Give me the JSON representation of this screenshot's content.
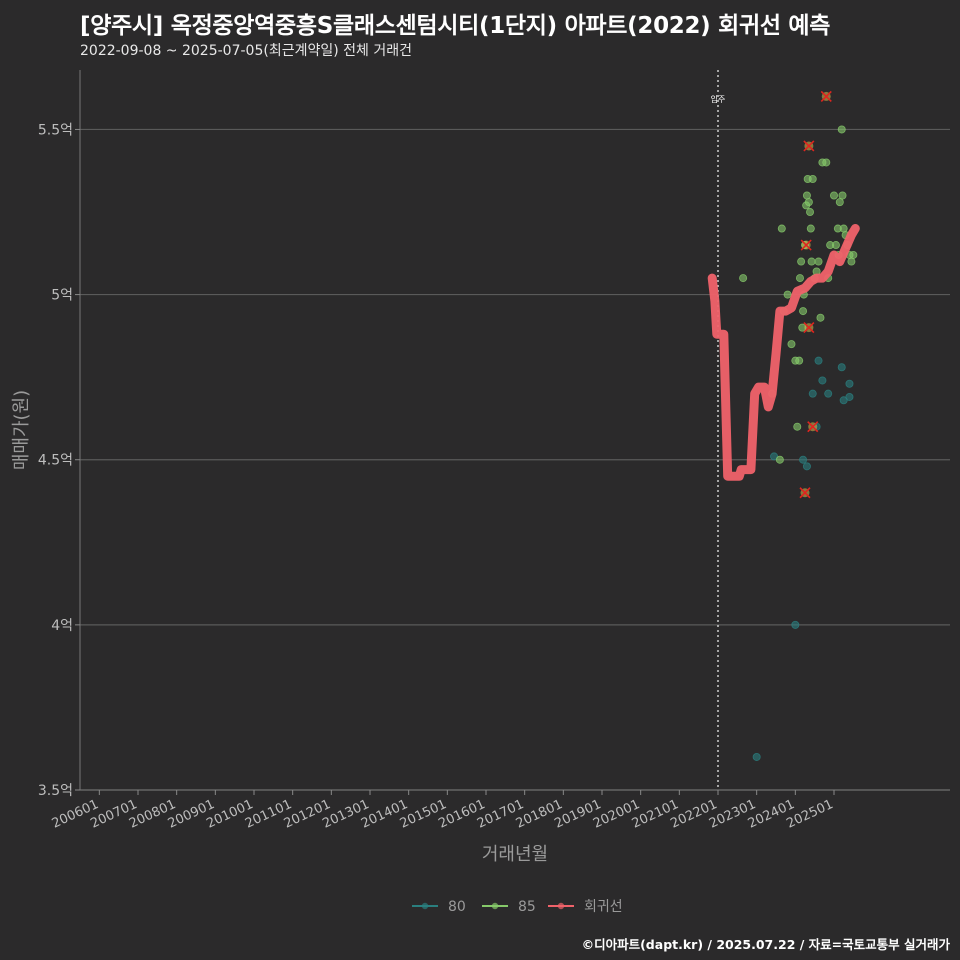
{
  "title": "[양주시] 옥정중앙역중흥S클래스센텀시티(1단지) 아파트(2022) 회귀선 예측",
  "subtitle": "2022-09-08 ~ 2025-07-05(최근계약일) 전체 거래건",
  "caption": "©디아파트(dapt.kr) / 2025.07.22 / 자료=국토교통부 실거래가",
  "colors": {
    "background": "#2b2a2b",
    "grid": "#5a5a5a",
    "s80": "#2a7f7f",
    "s85": "#86c96a",
    "regression": "#f0626a",
    "outlier": "#e0251f"
  },
  "chart_data": {
    "type": "scatter",
    "xlabel": "거래년월",
    "ylabel": "매매가(원)",
    "xlim": [
      2005.5,
      2028.0
    ],
    "ylim": [
      3.5,
      5.68
    ],
    "y_ticks": [
      3.5,
      4.0,
      4.5,
      5.0,
      5.5
    ],
    "y_tick_labels": [
      "3.5억",
      "4억",
      "4.5억",
      "5억",
      "5.5억"
    ],
    "x_ticks": [
      2006.0,
      2007.0,
      2008.0,
      2009.0,
      2010.0,
      2011.0,
      2012.0,
      2013.0,
      2014.0,
      2015.0,
      2016.0,
      2017.0,
      2018.0,
      2019.0,
      2020.0,
      2021.0,
      2022.0,
      2023.0,
      2024.0,
      2025.0
    ],
    "x_tick_labels": [
      "200601",
      "200701",
      "200801",
      "200901",
      "201001",
      "201101",
      "201201",
      "201301",
      "201401",
      "201501",
      "201601",
      "201701",
      "201801",
      "201901",
      "202001",
      "202101",
      "202201",
      "202301",
      "202401",
      "202501"
    ],
    "move_in_line": {
      "x": 2022.0,
      "label": "입주"
    },
    "legend": [
      {
        "name": "80"
      },
      {
        "name": "85"
      },
      {
        "name": "회귀선"
      }
    ],
    "series": [
      {
        "name": "80",
        "points": [
          [
            2023.0,
            3.6
          ],
          [
            2024.0,
            4.0
          ],
          [
            2024.2,
            4.5
          ],
          [
            2024.3,
            4.48
          ],
          [
            2024.55,
            4.6
          ],
          [
            2024.6,
            4.8
          ],
          [
            2024.7,
            4.74
          ],
          [
            2024.85,
            4.7
          ],
          [
            2025.2,
            4.78
          ],
          [
            2025.25,
            4.68
          ],
          [
            2025.4,
            4.73
          ],
          [
            2025.4,
            4.69
          ],
          [
            2024.45,
            4.7
          ],
          [
            2023.45,
            4.51
          ]
        ]
      },
      {
        "name": "85",
        "points": [
          [
            2022.65,
            5.05
          ],
          [
            2023.4,
            4.7
          ],
          [
            2023.6,
            4.5
          ],
          [
            2023.65,
            5.2
          ],
          [
            2023.7,
            4.95
          ],
          [
            2023.8,
            5.0
          ],
          [
            2023.9,
            4.85
          ],
          [
            2024.0,
            4.8
          ],
          [
            2024.05,
            4.6
          ],
          [
            2024.1,
            4.8
          ],
          [
            2024.12,
            5.05
          ],
          [
            2024.15,
            5.1
          ],
          [
            2024.18,
            4.9
          ],
          [
            2024.2,
            4.95
          ],
          [
            2024.22,
            5.0
          ],
          [
            2024.25,
            5.15
          ],
          [
            2024.28,
            5.27
          ],
          [
            2024.3,
            5.3
          ],
          [
            2024.32,
            5.35
          ],
          [
            2024.35,
            5.28
          ],
          [
            2024.38,
            5.25
          ],
          [
            2024.4,
            5.2
          ],
          [
            2024.42,
            5.1
          ],
          [
            2024.45,
            5.35
          ],
          [
            2024.5,
            5.05
          ],
          [
            2024.55,
            5.07
          ],
          [
            2024.6,
            5.1
          ],
          [
            2024.65,
            4.93
          ],
          [
            2024.7,
            5.4
          ],
          [
            2024.8,
            5.4
          ],
          [
            2024.85,
            5.05
          ],
          [
            2024.9,
            5.15
          ],
          [
            2025.0,
            5.3
          ],
          [
            2025.05,
            5.15
          ],
          [
            2025.1,
            5.2
          ],
          [
            2025.15,
            5.28
          ],
          [
            2025.2,
            5.5
          ],
          [
            2025.22,
            5.3
          ],
          [
            2025.25,
            5.2
          ],
          [
            2025.3,
            5.18
          ],
          [
            2025.35,
            5.15
          ],
          [
            2025.4,
            5.12
          ],
          [
            2025.45,
            5.1
          ],
          [
            2025.5,
            5.12
          ],
          [
            2025.12,
            5.12
          ]
        ]
      },
      {
        "name": "회귀선",
        "points": [
          [
            2021.85,
            5.05
          ],
          [
            2021.92,
            4.98
          ],
          [
            2021.97,
            4.88
          ],
          [
            2022.15,
            4.88
          ],
          [
            2022.25,
            4.45
          ],
          [
            2022.55,
            4.45
          ],
          [
            2022.6,
            4.47
          ],
          [
            2022.85,
            4.47
          ],
          [
            2022.95,
            4.7
          ],
          [
            2023.05,
            4.72
          ],
          [
            2023.2,
            4.72
          ],
          [
            2023.3,
            4.66
          ],
          [
            2023.4,
            4.7
          ],
          [
            2023.5,
            4.82
          ],
          [
            2023.6,
            4.95
          ],
          [
            2023.75,
            4.95
          ],
          [
            2023.9,
            4.96
          ],
          [
            2024.05,
            5.01
          ],
          [
            2024.25,
            5.02
          ],
          [
            2024.4,
            5.04
          ],
          [
            2024.55,
            5.05
          ],
          [
            2024.7,
            5.05
          ],
          [
            2024.85,
            5.07
          ],
          [
            2025.0,
            5.12
          ],
          [
            2025.15,
            5.1
          ],
          [
            2025.3,
            5.14
          ],
          [
            2025.45,
            5.18
          ],
          [
            2025.55,
            5.2
          ]
        ]
      }
    ],
    "outliers": [
      [
        2024.8,
        5.6
      ],
      [
        2024.35,
        5.45
      ],
      [
        2024.28,
        5.15
      ],
      [
        2024.35,
        4.9
      ],
      [
        2024.45,
        4.6
      ],
      [
        2024.25,
        4.4
      ]
    ]
  }
}
